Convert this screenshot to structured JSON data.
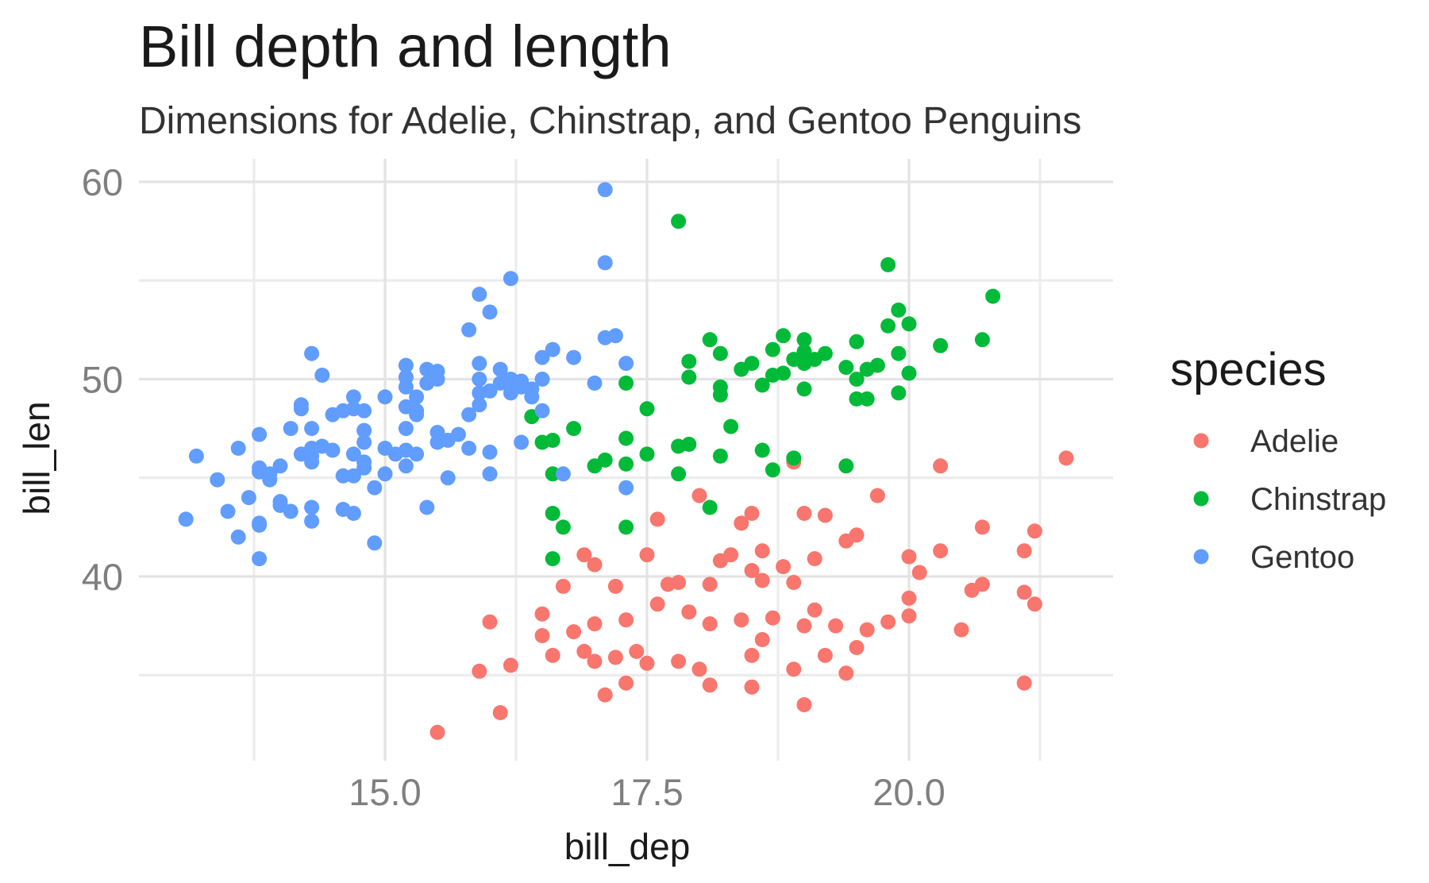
{
  "chart_data": {
    "type": "scatter",
    "title": "Bill depth and length",
    "subtitle": "Dimensions for Adelie, Chinstrap, and Gentoo Penguins",
    "xlabel": "bill_dep",
    "ylabel": "bill_len",
    "xlim": [
      12.8,
      21.8
    ],
    "ylim": [
      31,
      61
    ],
    "x_ticks": [
      {
        "value": 15,
        "label": "15.0"
      },
      {
        "value": 17.5,
        "label": "17.5"
      },
      {
        "value": 20,
        "label": "20.0"
      }
    ],
    "y_ticks": [
      {
        "value": 40,
        "label": "40"
      },
      {
        "value": 50,
        "label": "50"
      },
      {
        "value": 60,
        "label": "60"
      }
    ],
    "grid": true,
    "legend": {
      "title": "species",
      "position": "right"
    },
    "series": [
      {
        "name": "Adelie",
        "color": "#F8766D",
        "points": [
          [
            15.5,
            32.1
          ],
          [
            16.1,
            33.1
          ],
          [
            17.1,
            34
          ],
          [
            17.3,
            34.6
          ],
          [
            18.1,
            34.5
          ],
          [
            18.5,
            34.4
          ],
          [
            19.0,
            33.5
          ],
          [
            15.9,
            35.2
          ],
          [
            16.2,
            35.5
          ],
          [
            17.0,
            35.7
          ],
          [
            17.2,
            35.9
          ],
          [
            17.5,
            35.6
          ],
          [
            17.8,
            35.7
          ],
          [
            18.0,
            35.3
          ],
          [
            18.9,
            35.3
          ],
          [
            19.4,
            35.1
          ],
          [
            19.2,
            36
          ],
          [
            19.5,
            36.4
          ],
          [
            16.6,
            36
          ],
          [
            16.9,
            36.2
          ],
          [
            17.4,
            36.2
          ],
          [
            18.5,
            36.0
          ],
          [
            18.6,
            36.8
          ],
          [
            19.0,
            37.5
          ],
          [
            20.0,
            38.0
          ],
          [
            20.5,
            37.3
          ],
          [
            16.0,
            37.7
          ],
          [
            16.5,
            38.1
          ],
          [
            16.8,
            37.2
          ],
          [
            17.0,
            37.6
          ],
          [
            17.3,
            37.8
          ],
          [
            17.6,
            38.6
          ],
          [
            17.9,
            38.2
          ],
          [
            18.1,
            37.6
          ],
          [
            18.4,
            37.8
          ],
          [
            18.7,
            37.9
          ],
          [
            19.1,
            38.3
          ],
          [
            19.3,
            37.5
          ],
          [
            19.6,
            37.3
          ],
          [
            19.8,
            37.7
          ],
          [
            20.0,
            38.9
          ],
          [
            20.7,
            39.6
          ],
          [
            21.1,
            39.2
          ],
          [
            21.2,
            38.6
          ],
          [
            16.7,
            39.5
          ],
          [
            16.9,
            41.1
          ],
          [
            17.0,
            40.6
          ],
          [
            17.2,
            39.5
          ],
          [
            17.5,
            41.1
          ],
          [
            17.8,
            39.7
          ],
          [
            18.1,
            39.6
          ],
          [
            18.3,
            41.1
          ],
          [
            18.5,
            40.3
          ],
          [
            18.6,
            39.8
          ],
          [
            18.8,
            40.5
          ],
          [
            18.9,
            39.7
          ],
          [
            19.1,
            40.9
          ],
          [
            19.4,
            41.8
          ],
          [
            19.5,
            42.1
          ],
          [
            19.7,
            44.1
          ],
          [
            19.0,
            43.2
          ],
          [
            19.2,
            43.1
          ],
          [
            18.5,
            43.2
          ],
          [
            18.4,
            42.7
          ],
          [
            18.6,
            41.3
          ],
          [
            18.0,
            44.1
          ],
          [
            17.6,
            42.9
          ],
          [
            20.0,
            41.0
          ],
          [
            20.1,
            40.2
          ],
          [
            20.3,
            41.3
          ],
          [
            20.3,
            45.6
          ],
          [
            20.7,
            42.5
          ],
          [
            20.6,
            39.3
          ],
          [
            21.1,
            41.3
          ],
          [
            21.2,
            42.3
          ],
          [
            21.5,
            46.0
          ],
          [
            21.1,
            34.6
          ],
          [
            18.9,
            45.8
          ],
          [
            16.5,
            37.0
          ],
          [
            17.7,
            39.6
          ],
          [
            18.2,
            40.8
          ]
        ]
      },
      {
        "name": "Chinstrap",
        "color": "#00BA38",
        "points": [
          [
            16.4,
            48.1
          ],
          [
            16.5,
            46.8
          ],
          [
            16.6,
            46.9
          ],
          [
            16.6,
            45.2
          ],
          [
            16.6,
            43.2
          ],
          [
            16.7,
            42.5
          ],
          [
            16.6,
            40.9
          ],
          [
            16.8,
            47.5
          ],
          [
            17.0,
            45.6
          ],
          [
            17.1,
            45.9
          ],
          [
            17.3,
            49.8
          ],
          [
            17.3,
            47
          ],
          [
            17.3,
            45.7
          ],
          [
            17.3,
            42.5
          ],
          [
            17.5,
            48.5
          ],
          [
            17.5,
            46.2
          ],
          [
            17.8,
            46.6
          ],
          [
            17.8,
            45.2
          ],
          [
            17.8,
            58
          ],
          [
            17.9,
            46.7
          ],
          [
            17.9,
            50.9
          ],
          [
            17.9,
            50.1
          ],
          [
            18.1,
            52
          ],
          [
            18.1,
            43.5
          ],
          [
            18.2,
            51.3
          ],
          [
            18.2,
            49.6
          ],
          [
            18.2,
            49.2
          ],
          [
            18.2,
            46.1
          ],
          [
            18.3,
            47.6
          ],
          [
            18.4,
            50.5
          ],
          [
            18.5,
            50.8
          ],
          [
            18.6,
            49.7
          ],
          [
            18.6,
            46.4
          ],
          [
            18.7,
            51.5
          ],
          [
            18.7,
            50.2
          ],
          [
            18.7,
            45.4
          ],
          [
            18.8,
            52.2
          ],
          [
            18.8,
            50.3
          ],
          [
            18.9,
            51.0
          ],
          [
            18.9,
            46.0
          ],
          [
            19.0,
            52.0
          ],
          [
            19.0,
            51.4
          ],
          [
            19.0,
            50.8
          ],
          [
            19.0,
            49.5
          ],
          [
            19.1,
            51.0
          ],
          [
            19.2,
            51.3
          ],
          [
            19.4,
            50.6
          ],
          [
            19.4,
            45.6
          ],
          [
            19.5,
            51.9
          ],
          [
            19.5,
            50.0
          ],
          [
            19.5,
            49.0
          ],
          [
            19.6,
            50.5
          ],
          [
            19.6,
            49.0
          ],
          [
            19.7,
            50.7
          ],
          [
            19.8,
            55.8
          ],
          [
            19.8,
            52.7
          ],
          [
            19.9,
            53.5
          ],
          [
            19.9,
            51.3
          ],
          [
            19.9,
            49.3
          ],
          [
            20.0,
            52.8
          ],
          [
            20.0,
            50.3
          ],
          [
            20.3,
            51.7
          ],
          [
            20.7,
            52.0
          ],
          [
            20.8,
            54.2
          ]
        ]
      },
      {
        "name": "Gentoo",
        "color": "#619CFF",
        "points": [
          [
            13.1,
            42.9
          ],
          [
            13.2,
            46.1
          ],
          [
            13.4,
            44.9
          ],
          [
            13.5,
            43.3
          ],
          [
            13.6,
            46.5
          ],
          [
            13.6,
            42
          ],
          [
            13.7,
            44
          ],
          [
            13.8,
            45.5
          ],
          [
            13.8,
            45.3
          ],
          [
            13.8,
            42.7
          ],
          [
            13.8,
            42.6
          ],
          [
            13.8,
            40.9
          ],
          [
            13.8,
            47.2
          ],
          [
            13.9,
            45.2
          ],
          [
            13.9,
            44.9
          ],
          [
            14.0,
            45.6
          ],
          [
            14.0,
            43.8
          ],
          [
            14.0,
            43.6
          ],
          [
            14.1,
            43.3
          ],
          [
            14.1,
            47.5
          ],
          [
            14.2,
            48.7
          ],
          [
            14.2,
            48.5
          ],
          [
            14.2,
            46.2
          ],
          [
            14.3,
            51.3
          ],
          [
            14.3,
            47.5
          ],
          [
            14.3,
            46.5
          ],
          [
            14.3,
            46.1
          ],
          [
            14.3,
            45.8
          ],
          [
            14.3,
            43.5
          ],
          [
            14.3,
            42.8
          ],
          [
            14.4,
            50.2
          ],
          [
            14.4,
            46.6
          ],
          [
            14.5,
            48.2
          ],
          [
            14.5,
            46.4
          ],
          [
            14.6,
            48.4
          ],
          [
            14.6,
            45.1
          ],
          [
            14.6,
            43.4
          ],
          [
            14.7,
            49.1
          ],
          [
            14.7,
            48.5
          ],
          [
            14.7,
            46.2
          ],
          [
            14.7,
            45.1
          ],
          [
            14.7,
            43.2
          ],
          [
            14.8,
            47.4
          ],
          [
            14.8,
            46.8
          ],
          [
            14.8,
            45.8
          ],
          [
            14.8,
            45.5
          ],
          [
            14.8,
            48.4
          ],
          [
            14.9,
            44.5
          ],
          [
            14.9,
            41.7
          ],
          [
            15.0,
            49.1
          ],
          [
            15.0,
            46.5
          ],
          [
            15.0,
            45.2
          ],
          [
            15.1,
            46.2
          ],
          [
            15.2,
            50.7
          ],
          [
            15.2,
            50.1
          ],
          [
            15.2,
            49.6
          ],
          [
            15.2,
            48.6
          ],
          [
            15.2,
            47.5
          ],
          [
            15.2,
            46.4
          ],
          [
            15.2,
            45.6
          ],
          [
            15.3,
            49.1
          ],
          [
            15.3,
            48.4
          ],
          [
            15.3,
            48.2
          ],
          [
            15.3,
            46.2
          ],
          [
            15.4,
            50.5
          ],
          [
            15.4,
            49.8
          ],
          [
            15.4,
            43.5
          ],
          [
            15.5,
            50.4
          ],
          [
            15.5,
            50.0
          ],
          [
            15.5,
            47.3
          ],
          [
            15.5,
            46.8
          ],
          [
            15.6,
            46.9
          ],
          [
            15.6,
            45.0
          ],
          [
            15.7,
            47.2
          ],
          [
            15.8,
            52.5
          ],
          [
            15.8,
            48.2
          ],
          [
            15.8,
            46.5
          ],
          [
            15.9,
            54.3
          ],
          [
            15.9,
            50.8
          ],
          [
            15.9,
            50.0
          ],
          [
            15.9,
            49.3
          ],
          [
            15.9,
            48.7
          ],
          [
            16.0,
            53.4
          ],
          [
            16.0,
            49.4
          ],
          [
            16.0,
            46.3
          ],
          [
            16.0,
            45.2
          ],
          [
            16.1,
            50.5
          ],
          [
            16.1,
            49.8
          ],
          [
            16.2,
            55.1
          ],
          [
            16.2,
            50.0
          ],
          [
            16.2,
            49.3
          ],
          [
            16.3,
            49.9
          ],
          [
            16.3,
            49.6
          ],
          [
            16.3,
            46.8
          ],
          [
            16.4,
            49.5
          ],
          [
            16.4,
            49.1
          ],
          [
            16.5,
            51.1
          ],
          [
            16.5,
            50.0
          ],
          [
            16.5,
            48.4
          ],
          [
            16.6,
            51.5
          ],
          [
            16.7,
            45.2
          ],
          [
            16.8,
            51.1
          ],
          [
            17.0,
            49.8
          ],
          [
            17.1,
            59.6
          ],
          [
            17.1,
            55.9
          ],
          [
            17.1,
            52.1
          ],
          [
            17.2,
            52.2
          ],
          [
            17.3,
            50.8
          ],
          [
            17.3,
            44.5
          ]
        ]
      }
    ]
  }
}
